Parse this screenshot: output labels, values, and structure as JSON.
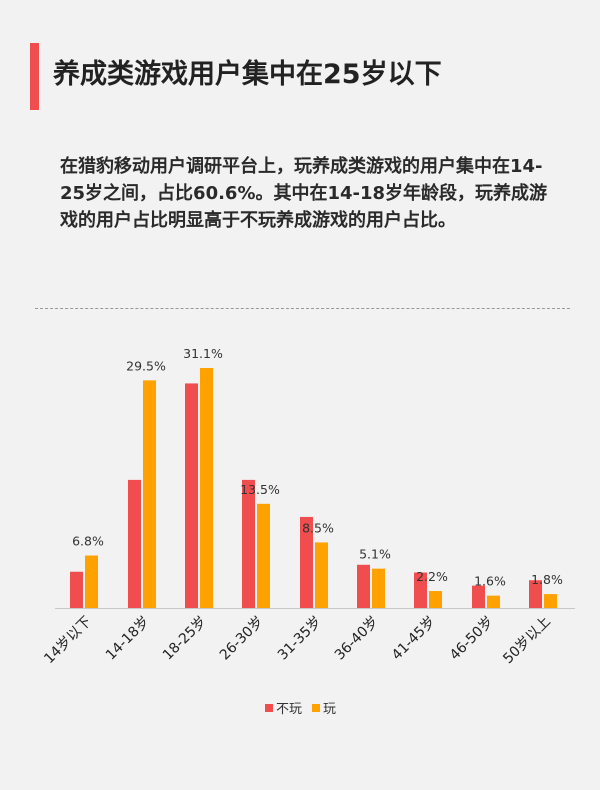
{
  "header": {
    "title": "养成类游戏用户集中在25岁以下"
  },
  "description": "在猎豹移动用户调研平台上，玩养成类游戏的用户集中在14-25岁之间，占比60.6%。其中在14-18岁年龄段，玩养成游戏的用户占比明显高于不玩养成游戏的用户占比。",
  "colors": {
    "accent": "#f04e4e",
    "series_not_play": "#f04e4e",
    "series_play": "#ffa200"
  },
  "chart_data": {
    "type": "bar",
    "categories": [
      "14岁以下",
      "14-18岁",
      "18-25岁",
      "26-30岁",
      "31-35岁",
      "36-40岁",
      "41-45岁",
      "46-50岁",
      "50岁以上"
    ],
    "series": [
      {
        "name": "不玩",
        "values": [
          4.7,
          16.6,
          29.1,
          16.6,
          11.8,
          5.6,
          4.6,
          2.9,
          3.6
        ]
      },
      {
        "name": "玩",
        "values": [
          6.8,
          29.5,
          31.1,
          13.5,
          8.5,
          5.1,
          2.2,
          1.6,
          1.8
        ]
      }
    ],
    "data_labels": [
      "6.8%",
      "29.5%",
      "31.1%",
      "13.5%",
      "8.5%",
      "5.1%",
      "2.2%",
      "1.6%",
      "1.8%"
    ],
    "ylim": [
      0,
      31.1
    ],
    "grid": false,
    "legend": "bottom-center"
  }
}
